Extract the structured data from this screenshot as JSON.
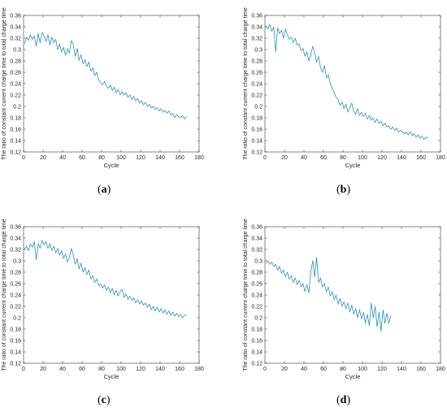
{
  "figure": {
    "panels": [
      {
        "caption": "a"
      },
      {
        "caption": "b"
      },
      {
        "caption": "c"
      },
      {
        "caption": "d"
      }
    ]
  },
  "colors": {
    "line": "#2a8fbd",
    "axis": "#333333",
    "text": "#262626"
  },
  "chart_data": [
    {
      "type": "line",
      "title": "",
      "xlabel": "Cycle",
      "ylabel": "The ratio of constant current charge time to total charge time",
      "xlim": [
        0,
        180
      ],
      "ylim": [
        0.12,
        0.36
      ],
      "xticks": [
        0,
        20,
        40,
        60,
        80,
        100,
        120,
        140,
        160,
        180
      ],
      "yticks": [
        0.12,
        0.14,
        0.16,
        0.18,
        0.2,
        0.22,
        0.24,
        0.26,
        0.28,
        0.3,
        0.32,
        0.34,
        0.36
      ],
      "grid": false,
      "series": [
        {
          "x": [
            1,
            3,
            5,
            7,
            9,
            11,
            13,
            15,
            17,
            19,
            21,
            23,
            25,
            27,
            29,
            31,
            33,
            35,
            37,
            39,
            41,
            43,
            45,
            47,
            49,
            51,
            53,
            55,
            57,
            59,
            61,
            63,
            65,
            67,
            69,
            71,
            73,
            75,
            77,
            79,
            81,
            83,
            85,
            87,
            89,
            91,
            93,
            95,
            97,
            99,
            101,
            103,
            105,
            107,
            109,
            111,
            113,
            115,
            117,
            119,
            121,
            123,
            125,
            127,
            129,
            131,
            133,
            135,
            137,
            139,
            141,
            143,
            145,
            147,
            149,
            151,
            153,
            155,
            157,
            159,
            161,
            163,
            165,
            167
          ],
          "y": [
            0.31,
            0.322,
            0.316,
            0.326,
            0.318,
            0.324,
            0.306,
            0.328,
            0.312,
            0.33,
            0.324,
            0.314,
            0.326,
            0.308,
            0.322,
            0.312,
            0.318,
            0.3,
            0.31,
            0.296,
            0.304,
            0.29,
            0.302,
            0.294,
            0.316,
            0.308,
            0.288,
            0.302,
            0.281,
            0.291,
            0.275,
            0.282,
            0.27,
            0.278,
            0.262,
            0.268,
            0.254,
            0.26,
            0.246,
            0.242,
            0.238,
            0.244,
            0.236,
            0.232,
            0.238,
            0.228,
            0.234,
            0.224,
            0.23,
            0.22,
            0.226,
            0.22,
            0.224,
            0.216,
            0.22,
            0.212,
            0.218,
            0.21,
            0.214,
            0.206,
            0.21,
            0.203,
            0.207,
            0.2,
            0.204,
            0.198,
            0.2,
            0.195,
            0.198,
            0.192,
            0.196,
            0.19,
            0.193,
            0.188,
            0.192,
            0.185,
            0.188,
            0.18,
            0.186,
            0.182,
            0.18,
            0.184,
            0.178,
            0.182
          ]
        }
      ]
    },
    {
      "type": "line",
      "title": "",
      "xlabel": "Cycle",
      "ylabel": "The ratio of constant current charge time to total charge time",
      "xlim": [
        0,
        180
      ],
      "ylim": [
        0.12,
        0.36
      ],
      "xticks": [
        0,
        20,
        40,
        60,
        80,
        100,
        120,
        140,
        160,
        180
      ],
      "yticks": [
        0.12,
        0.14,
        0.16,
        0.18,
        0.2,
        0.22,
        0.24,
        0.26,
        0.28,
        0.3,
        0.32,
        0.34,
        0.36
      ],
      "grid": false,
      "series": [
        {
          "x": [
            1,
            3,
            5,
            7,
            9,
            11,
            13,
            15,
            17,
            19,
            21,
            23,
            25,
            27,
            29,
            31,
            33,
            35,
            37,
            39,
            41,
            43,
            45,
            47,
            49,
            51,
            53,
            55,
            57,
            59,
            61,
            63,
            65,
            67,
            69,
            71,
            73,
            75,
            77,
            79,
            81,
            83,
            85,
            87,
            89,
            91,
            93,
            95,
            97,
            99,
            101,
            103,
            105,
            107,
            109,
            111,
            113,
            115,
            117,
            119,
            121,
            123,
            125,
            127,
            129,
            131,
            133,
            135,
            137,
            139,
            141,
            143,
            145,
            147,
            149,
            151,
            153,
            155,
            157,
            159,
            161,
            163,
            165,
            167
          ],
          "y": [
            0.342,
            0.336,
            0.344,
            0.332,
            0.34,
            0.296,
            0.338,
            0.328,
            0.334,
            0.32,
            0.336,
            0.326,
            0.318,
            0.322,
            0.312,
            0.32,
            0.308,
            0.31,
            0.298,
            0.302,
            0.288,
            0.296,
            0.28,
            0.29,
            0.306,
            0.294,
            0.278,
            0.288,
            0.268,
            0.26,
            0.272,
            0.25,
            0.256,
            0.24,
            0.232,
            0.224,
            0.216,
            0.212,
            0.202,
            0.208,
            0.196,
            0.204,
            0.19,
            0.198,
            0.206,
            0.192,
            0.186,
            0.196,
            0.184,
            0.19,
            0.182,
            0.188,
            0.178,
            0.184,
            0.176,
            0.18,
            0.172,
            0.178,
            0.17,
            0.174,
            0.166,
            0.17,
            0.164,
            0.166,
            0.16,
            0.164,
            0.158,
            0.162,
            0.155,
            0.158,
            0.156,
            0.152,
            0.155,
            0.15,
            0.156,
            0.148,
            0.152,
            0.146,
            0.15,
            0.144,
            0.148,
            0.142,
            0.146,
            0.144
          ]
        }
      ]
    },
    {
      "type": "line",
      "title": "",
      "xlabel": "Cycle",
      "ylabel": "The ratio of constant current charge time to total charge time",
      "xlim": [
        0,
        180
      ],
      "ylim": [
        0.12,
        0.36
      ],
      "xticks": [
        0,
        20,
        40,
        60,
        80,
        100,
        120,
        140,
        160,
        180
      ],
      "yticks": [
        0.12,
        0.14,
        0.16,
        0.18,
        0.2,
        0.22,
        0.24,
        0.26,
        0.28,
        0.3,
        0.32,
        0.34,
        0.36
      ],
      "grid": false,
      "series": [
        {
          "x": [
            1,
            3,
            5,
            7,
            9,
            11,
            13,
            15,
            17,
            19,
            21,
            23,
            25,
            27,
            29,
            31,
            33,
            35,
            37,
            39,
            41,
            43,
            45,
            47,
            49,
            51,
            53,
            55,
            57,
            59,
            61,
            63,
            65,
            67,
            69,
            71,
            73,
            75,
            77,
            79,
            81,
            83,
            85,
            87,
            89,
            91,
            93,
            95,
            97,
            99,
            101,
            103,
            105,
            107,
            109,
            111,
            113,
            115,
            117,
            119,
            121,
            123,
            125,
            127,
            129,
            131,
            133,
            135,
            137,
            139,
            141,
            143,
            145,
            147,
            149,
            151,
            153,
            155,
            157,
            159,
            161,
            163,
            165,
            167
          ],
          "y": [
            0.32,
            0.326,
            0.318,
            0.33,
            0.324,
            0.334,
            0.302,
            0.33,
            0.322,
            0.336,
            0.328,
            0.334,
            0.322,
            0.33,
            0.318,
            0.326,
            0.314,
            0.322,
            0.31,
            0.318,
            0.304,
            0.312,
            0.298,
            0.306,
            0.322,
            0.31,
            0.294,
            0.304,
            0.286,
            0.296,
            0.28,
            0.288,
            0.276,
            0.284,
            0.268,
            0.274,
            0.262,
            0.268,
            0.256,
            0.26,
            0.252,
            0.258,
            0.248,
            0.254,
            0.244,
            0.252,
            0.24,
            0.248,
            0.238,
            0.246,
            0.25,
            0.236,
            0.242,
            0.232,
            0.238,
            0.23,
            0.235,
            0.226,
            0.232,
            0.224,
            0.23,
            0.222,
            0.226,
            0.218,
            0.224,
            0.214,
            0.22,
            0.212,
            0.218,
            0.21,
            0.216,
            0.208,
            0.214,
            0.206,
            0.212,
            0.204,
            0.21,
            0.203,
            0.208,
            0.202,
            0.206,
            0.2,
            0.204,
            0.206
          ]
        }
      ]
    },
    {
      "type": "line",
      "title": "",
      "xlabel": "Cycle",
      "ylabel": "The ratio of constant current charge time to total charge time",
      "xlim": [
        0,
        180
      ],
      "ylim": [
        0.12,
        0.36
      ],
      "xticks": [
        0,
        20,
        40,
        60,
        80,
        100,
        120,
        140,
        160,
        180
      ],
      "yticks": [
        0.12,
        0.14,
        0.16,
        0.18,
        0.2,
        0.22,
        0.24,
        0.26,
        0.28,
        0.3,
        0.32,
        0.34,
        0.36
      ],
      "grid": false,
      "series": [
        {
          "x": [
            1,
            3,
            5,
            7,
            9,
            11,
            13,
            15,
            17,
            19,
            21,
            23,
            25,
            27,
            29,
            31,
            33,
            35,
            37,
            39,
            41,
            43,
            45,
            47,
            49,
            51,
            53,
            55,
            57,
            59,
            61,
            63,
            65,
            67,
            69,
            71,
            73,
            75,
            77,
            79,
            81,
            83,
            85,
            87,
            89,
            91,
            93,
            95,
            97,
            99,
            101,
            103,
            105,
            107,
            109,
            111,
            113,
            115,
            117,
            119,
            121,
            123,
            125,
            127,
            129
          ],
          "y": [
            0.296,
            0.3,
            0.294,
            0.298,
            0.29,
            0.294,
            0.284,
            0.29,
            0.278,
            0.284,
            0.272,
            0.28,
            0.268,
            0.274,
            0.262,
            0.27,
            0.258,
            0.266,
            0.254,
            0.26,
            0.246,
            0.258,
            0.244,
            0.28,
            0.3,
            0.272,
            0.306,
            0.262,
            0.27,
            0.254,
            0.26,
            0.246,
            0.254,
            0.238,
            0.246,
            0.232,
            0.24,
            0.224,
            0.234,
            0.22,
            0.228,
            0.216,
            0.226,
            0.21,
            0.222,
            0.206,
            0.216,
            0.2,
            0.214,
            0.198,
            0.21,
            0.19,
            0.206,
            0.186,
            0.226,
            0.2,
            0.22,
            0.184,
            0.21,
            0.176,
            0.214,
            0.19,
            0.208,
            0.19,
            0.204
          ]
        }
      ]
    }
  ]
}
